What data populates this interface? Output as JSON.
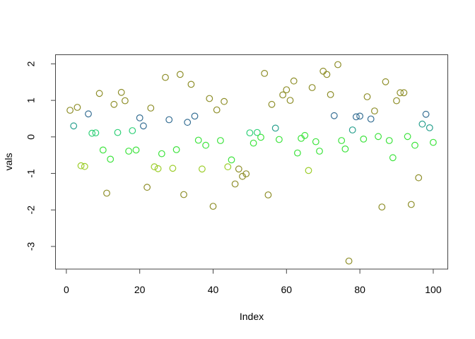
{
  "figure": {
    "background": "#ffffff",
    "box_color": "#444444",
    "text_color": "#000000"
  },
  "chart_data": {
    "type": "scatter",
    "title": "",
    "xlabel": "Index",
    "ylabel": "vals",
    "point_style": "open-circle",
    "grid": false,
    "legend": "none",
    "x_ticks": [
      0,
      20,
      40,
      60,
      80,
      100
    ],
    "x_tick_labels": [
      "0",
      "20",
      "40",
      "60",
      "80",
      "100"
    ],
    "y_ticks": [
      2,
      1,
      0,
      -1,
      -2,
      -3
    ],
    "y_tick_labels": [
      "2",
      "1",
      "0",
      "-1",
      "-2",
      "-3"
    ],
    "x_range": [
      -2.96,
      103.96
    ],
    "y_range": [
      -3.62,
      2.25
    ],
    "palette": {
      "o": "#8e8e29",
      "b": "#356e93",
      "t": "#28a08e",
      "s": "#2fd077",
      "g": "#3ce33c",
      "c": "#9ccd2a"
    },
    "palette_names": {
      "o": "olive",
      "b": "steel-blue",
      "t": "teal",
      "s": "spring-green",
      "g": "green",
      "c": "chartreuse"
    },
    "points": [
      {
        "x": 1,
        "y": 0.73,
        "c": "o"
      },
      {
        "x": 2,
        "y": 0.3,
        "c": "t"
      },
      {
        "x": 3,
        "y": 0.81,
        "c": "o"
      },
      {
        "x": 4,
        "y": -0.79,
        "c": "c"
      },
      {
        "x": 5,
        "y": -0.81,
        "c": "c"
      },
      {
        "x": 6,
        "y": 0.63,
        "c": "b"
      },
      {
        "x": 7,
        "y": 0.1,
        "c": "s"
      },
      {
        "x": 8,
        "y": 0.11,
        "c": "s"
      },
      {
        "x": 9,
        "y": 1.19,
        "c": "o"
      },
      {
        "x": 10,
        "y": -0.36,
        "c": "g"
      },
      {
        "x": 11,
        "y": -1.54,
        "c": "o"
      },
      {
        "x": 12,
        "y": -0.61,
        "c": "g"
      },
      {
        "x": 13,
        "y": 0.89,
        "c": "o"
      },
      {
        "x": 14,
        "y": 0.12,
        "c": "s"
      },
      {
        "x": 15,
        "y": 1.22,
        "c": "o"
      },
      {
        "x": 16,
        "y": 0.99,
        "c": "o"
      },
      {
        "x": 17,
        "y": -0.39,
        "c": "g"
      },
      {
        "x": 18,
        "y": 0.17,
        "c": "s"
      },
      {
        "x": 19,
        "y": -0.36,
        "c": "g"
      },
      {
        "x": 20,
        "y": 0.52,
        "c": "b"
      },
      {
        "x": 21,
        "y": 0.3,
        "c": "b"
      },
      {
        "x": 22,
        "y": -1.38,
        "c": "o"
      },
      {
        "x": 23,
        "y": 0.79,
        "c": "o"
      },
      {
        "x": 24,
        "y": -0.82,
        "c": "c"
      },
      {
        "x": 25,
        "y": -0.87,
        "c": "c"
      },
      {
        "x": 26,
        "y": -0.46,
        "c": "g"
      },
      {
        "x": 27,
        "y": 1.63,
        "c": "o"
      },
      {
        "x": 28,
        "y": 0.47,
        "c": "b"
      },
      {
        "x": 29,
        "y": -0.86,
        "c": "c"
      },
      {
        "x": 30,
        "y": -0.35,
        "c": "g"
      },
      {
        "x": 31,
        "y": 1.71,
        "c": "o"
      },
      {
        "x": 32,
        "y": -1.58,
        "c": "o"
      },
      {
        "x": 33,
        "y": 0.4,
        "c": "b"
      },
      {
        "x": 34,
        "y": 1.44,
        "c": "o"
      },
      {
        "x": 35,
        "y": 0.57,
        "c": "b"
      },
      {
        "x": 36,
        "y": -0.09,
        "c": "g"
      },
      {
        "x": 37,
        "y": -0.88,
        "c": "c"
      },
      {
        "x": 38,
        "y": -0.23,
        "c": "g"
      },
      {
        "x": 39,
        "y": 1.05,
        "c": "o"
      },
      {
        "x": 40,
        "y": -1.9,
        "c": "o"
      },
      {
        "x": 41,
        "y": 0.74,
        "c": "o"
      },
      {
        "x": 42,
        "y": -0.1,
        "c": "g"
      },
      {
        "x": 43,
        "y": 0.97,
        "c": "o"
      },
      {
        "x": 44,
        "y": -0.82,
        "c": "c"
      },
      {
        "x": 45,
        "y": -0.63,
        "c": "g"
      },
      {
        "x": 46,
        "y": -1.29,
        "c": "o"
      },
      {
        "x": 47,
        "y": -0.88,
        "c": "o"
      },
      {
        "x": 48,
        "y": -1.08,
        "c": "o"
      },
      {
        "x": 49,
        "y": -1.01,
        "c": "o"
      },
      {
        "x": 50,
        "y": 0.11,
        "c": "s"
      },
      {
        "x": 51,
        "y": -0.17,
        "c": "g"
      },
      {
        "x": 52,
        "y": 0.12,
        "c": "s"
      },
      {
        "x": 53,
        "y": -0.01,
        "c": "g"
      },
      {
        "x": 54,
        "y": 1.74,
        "c": "o"
      },
      {
        "x": 55,
        "y": -1.59,
        "c": "o"
      },
      {
        "x": 56,
        "y": 0.89,
        "c": "o"
      },
      {
        "x": 57,
        "y": 0.24,
        "c": "t"
      },
      {
        "x": 58,
        "y": -0.07,
        "c": "g"
      },
      {
        "x": 59,
        "y": 1.15,
        "c": "o"
      },
      {
        "x": 60,
        "y": 1.29,
        "c": "o"
      },
      {
        "x": 61,
        "y": 1.0,
        "c": "o"
      },
      {
        "x": 62,
        "y": 1.53,
        "c": "o"
      },
      {
        "x": 63,
        "y": -0.44,
        "c": "g"
      },
      {
        "x": 64,
        "y": -0.04,
        "c": "g"
      },
      {
        "x": 65,
        "y": 0.04,
        "c": "g"
      },
      {
        "x": 66,
        "y": -0.92,
        "c": "c"
      },
      {
        "x": 67,
        "y": 1.35,
        "c": "o"
      },
      {
        "x": 68,
        "y": -0.13,
        "c": "g"
      },
      {
        "x": 69,
        "y": -0.39,
        "c": "g"
      },
      {
        "x": 70,
        "y": 1.8,
        "c": "o"
      },
      {
        "x": 71,
        "y": 1.71,
        "c": "o"
      },
      {
        "x": 72,
        "y": 1.16,
        "c": "o"
      },
      {
        "x": 73,
        "y": 0.58,
        "c": "b"
      },
      {
        "x": 74,
        "y": 1.98,
        "c": "o"
      },
      {
        "x": 75,
        "y": -0.1,
        "c": "g"
      },
      {
        "x": 76,
        "y": -0.33,
        "c": "g"
      },
      {
        "x": 77,
        "y": -3.4,
        "c": "o"
      },
      {
        "x": 78,
        "y": 0.19,
        "c": "t"
      },
      {
        "x": 79,
        "y": 0.55,
        "c": "b"
      },
      {
        "x": 80,
        "y": 0.57,
        "c": "b"
      },
      {
        "x": 81,
        "y": -0.06,
        "c": "g"
      },
      {
        "x": 82,
        "y": 1.1,
        "c": "o"
      },
      {
        "x": 83,
        "y": 0.49,
        "c": "b"
      },
      {
        "x": 84,
        "y": 0.71,
        "c": "o"
      },
      {
        "x": 85,
        "y": 0.01,
        "c": "g"
      },
      {
        "x": 86,
        "y": -1.92,
        "c": "o"
      },
      {
        "x": 87,
        "y": 1.51,
        "c": "o"
      },
      {
        "x": 88,
        "y": -0.1,
        "c": "g"
      },
      {
        "x": 89,
        "y": -0.57,
        "c": "g"
      },
      {
        "x": 90,
        "y": 0.99,
        "c": "o"
      },
      {
        "x": 91,
        "y": 1.21,
        "c": "o"
      },
      {
        "x": 92,
        "y": 1.21,
        "c": "o"
      },
      {
        "x": 93,
        "y": 0.01,
        "c": "g"
      },
      {
        "x": 94,
        "y": -1.85,
        "c": "o"
      },
      {
        "x": 95,
        "y": -0.23,
        "c": "g"
      },
      {
        "x": 96,
        "y": -1.12,
        "c": "o"
      },
      {
        "x": 97,
        "y": 0.35,
        "c": "t"
      },
      {
        "x": 98,
        "y": 0.62,
        "c": "b"
      },
      {
        "x": 99,
        "y": 0.25,
        "c": "t"
      },
      {
        "x": 100,
        "y": -0.15,
        "c": "g"
      }
    ]
  }
}
